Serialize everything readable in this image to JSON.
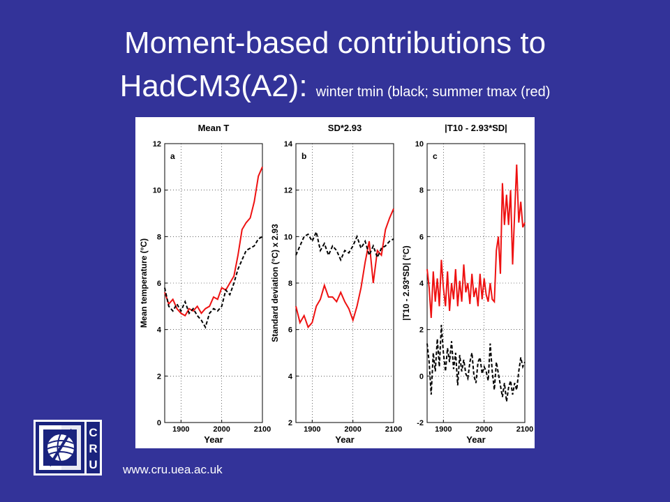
{
  "slide": {
    "title_line1": "Moment-based contributions to",
    "title_line2": "HadCM3(A2): ",
    "title_sub": "winter tmin (black; summer tmax (red)",
    "url": "www.cru.uea.ac.uk",
    "logo_text": "CRU"
  },
  "colors": {
    "background": "#333399",
    "red_series": "#ee1111",
    "black_series": "#000000"
  },
  "chart_data": [
    {
      "type": "line",
      "panel": "a",
      "title": "Mean T",
      "xlabel": "Year",
      "ylabel": "Mean temperature (°C)",
      "xlim": [
        1860,
        2100
      ],
      "ylim": [
        0,
        12
      ],
      "xticks": [
        1900,
        2000,
        2100
      ],
      "yticks": [
        0,
        2,
        4,
        6,
        8,
        10,
        12
      ],
      "grid": "dotted",
      "series": [
        {
          "color": "red",
          "style": "solid",
          "x": [
            1860,
            1870,
            1880,
            1890,
            1900,
            1910,
            1920,
            1930,
            1940,
            1950,
            1960,
            1970,
            1980,
            1990,
            2000,
            2010,
            2020,
            2030,
            2040,
            2050,
            2060,
            2070,
            2080,
            2090,
            2100
          ],
          "y": [
            5.6,
            5.1,
            5.3,
            4.9,
            4.7,
            4.6,
            4.9,
            4.8,
            5.0,
            4.7,
            4.9,
            5.0,
            5.4,
            5.3,
            5.8,
            5.7,
            6.0,
            6.3,
            7.2,
            8.3,
            8.6,
            8.8,
            9.5,
            10.6,
            11.0
          ]
        },
        {
          "color": "black",
          "style": "dashed",
          "x": [
            1860,
            1870,
            1880,
            1890,
            1900,
            1910,
            1920,
            1930,
            1940,
            1950,
            1960,
            1970,
            1980,
            1990,
            2000,
            2010,
            2020,
            2030,
            2040,
            2050,
            2060,
            2070,
            2080,
            2090,
            2100
          ],
          "y": [
            5.8,
            5.0,
            4.8,
            5.1,
            4.8,
            5.2,
            4.7,
            4.9,
            4.6,
            4.4,
            4.1,
            4.7,
            4.9,
            4.8,
            5.0,
            5.7,
            5.5,
            6.0,
            6.6,
            7.0,
            7.4,
            7.5,
            7.6,
            7.9,
            8.0
          ]
        }
      ]
    },
    {
      "type": "line",
      "panel": "b",
      "title": "SD*2.93",
      "xlabel": "Year",
      "ylabel": "Standard deviation (°C) x 2.93",
      "xlim": [
        1860,
        2100
      ],
      "ylim": [
        2,
        14
      ],
      "xticks": [
        1900,
        2000,
        2100
      ],
      "yticks": [
        2,
        4,
        6,
        8,
        10,
        12,
        14
      ],
      "grid": "dotted",
      "series": [
        {
          "color": "red",
          "style": "solid",
          "x": [
            1860,
            1870,
            1880,
            1890,
            1900,
            1910,
            1920,
            1930,
            1940,
            1950,
            1960,
            1970,
            1980,
            1990,
            2000,
            2010,
            2020,
            2030,
            2040,
            2050,
            2060,
            2070,
            2080,
            2090,
            2100
          ],
          "y": [
            7.0,
            6.3,
            6.6,
            6.1,
            6.3,
            7.0,
            7.3,
            7.9,
            7.4,
            7.4,
            7.2,
            7.6,
            7.2,
            6.9,
            6.4,
            7.0,
            7.8,
            8.9,
            9.8,
            8.0,
            9.4,
            9.2,
            10.3,
            10.8,
            11.2
          ]
        },
        {
          "color": "black",
          "style": "dashed",
          "x": [
            1860,
            1870,
            1880,
            1890,
            1900,
            1910,
            1920,
            1930,
            1940,
            1950,
            1960,
            1970,
            1980,
            1990,
            2000,
            2010,
            2020,
            2030,
            2040,
            2050,
            2060,
            2070,
            2080,
            2090,
            2100
          ],
          "y": [
            9.2,
            9.6,
            10.0,
            10.1,
            9.8,
            10.2,
            9.4,
            9.7,
            9.2,
            9.6,
            9.4,
            9.0,
            9.4,
            9.3,
            9.6,
            10.0,
            9.5,
            9.8,
            9.2,
            9.6,
            9.1,
            9.5,
            9.6,
            9.8,
            9.9
          ]
        }
      ]
    },
    {
      "type": "line",
      "panel": "c",
      "title": "|T10 - 2.93*SD|",
      "xlabel": "Year",
      "ylabel": "|T10 - 2.93*SD| (°C)",
      "xlim": [
        1860,
        2100
      ],
      "ylim": [
        -2,
        10
      ],
      "xticks": [
        1900,
        2000,
        2100
      ],
      "yticks": [
        -2,
        0,
        2,
        4,
        6,
        8,
        10
      ],
      "grid": "dotted",
      "series": [
        {
          "color": "red",
          "style": "solid",
          "x": [
            1860,
            1865,
            1870,
            1875,
            1880,
            1885,
            1890,
            1895,
            1900,
            1905,
            1910,
            1915,
            1920,
            1925,
            1930,
            1935,
            1940,
            1945,
            1950,
            1955,
            1960,
            1965,
            1970,
            1975,
            1980,
            1985,
            1990,
            1995,
            2000,
            2005,
            2010,
            2015,
            2020,
            2025,
            2030,
            2035,
            2040,
            2045,
            2050,
            2055,
            2060,
            2065,
            2070,
            2075,
            2080,
            2085,
            2090,
            2095,
            2100
          ],
          "y": [
            4.6,
            3.8,
            2.5,
            4.5,
            3.2,
            4.2,
            3.0,
            5.0,
            3.8,
            3.0,
            4.5,
            2.8,
            4.0,
            3.3,
            4.6,
            3.0,
            4.1,
            3.2,
            4.8,
            3.6,
            4.0,
            3.1,
            4.4,
            3.4,
            3.8,
            3.0,
            4.4,
            3.3,
            4.2,
            3.5,
            3.2,
            4.0,
            3.3,
            3.2,
            5.4,
            6.0,
            4.4,
            8.3,
            6.5,
            7.8,
            6.5,
            8.0,
            4.8,
            7.0,
            9.1,
            6.6,
            7.5,
            6.4,
            6.6
          ]
        },
        {
          "color": "black",
          "style": "dashed",
          "x": [
            1860,
            1865,
            1870,
            1875,
            1880,
            1885,
            1890,
            1895,
            1900,
            1905,
            1910,
            1915,
            1920,
            1925,
            1930,
            1935,
            1940,
            1945,
            1950,
            1955,
            1960,
            1965,
            1970,
            1975,
            1980,
            1985,
            1990,
            1995,
            2000,
            2005,
            2010,
            2015,
            2020,
            2025,
            2030,
            2035,
            2040,
            2045,
            2050,
            2055,
            2060,
            2065,
            2070,
            2075,
            2080,
            2085,
            2090,
            2095,
            2100
          ],
          "y": [
            1.4,
            0.6,
            -0.8,
            1.0,
            0.2,
            1.6,
            0.4,
            2.2,
            1.0,
            0.2,
            1.2,
            0.6,
            1.5,
            0.3,
            1.0,
            -0.4,
            0.9,
            0.2,
            0.7,
            0.1,
            -0.1,
            0.6,
            1.0,
            0.0,
            -0.3,
            0.6,
            0.8,
            0.1,
            0.4,
            0.2,
            -0.2,
            1.4,
            0.2,
            -0.6,
            0.6,
            0.1,
            -0.4,
            -0.9,
            -0.3,
            -1.1,
            -0.5,
            -0.2,
            -0.8,
            -0.3,
            -0.6,
            0.2,
            0.8,
            0.4,
            0.6
          ]
        }
      ]
    }
  ]
}
